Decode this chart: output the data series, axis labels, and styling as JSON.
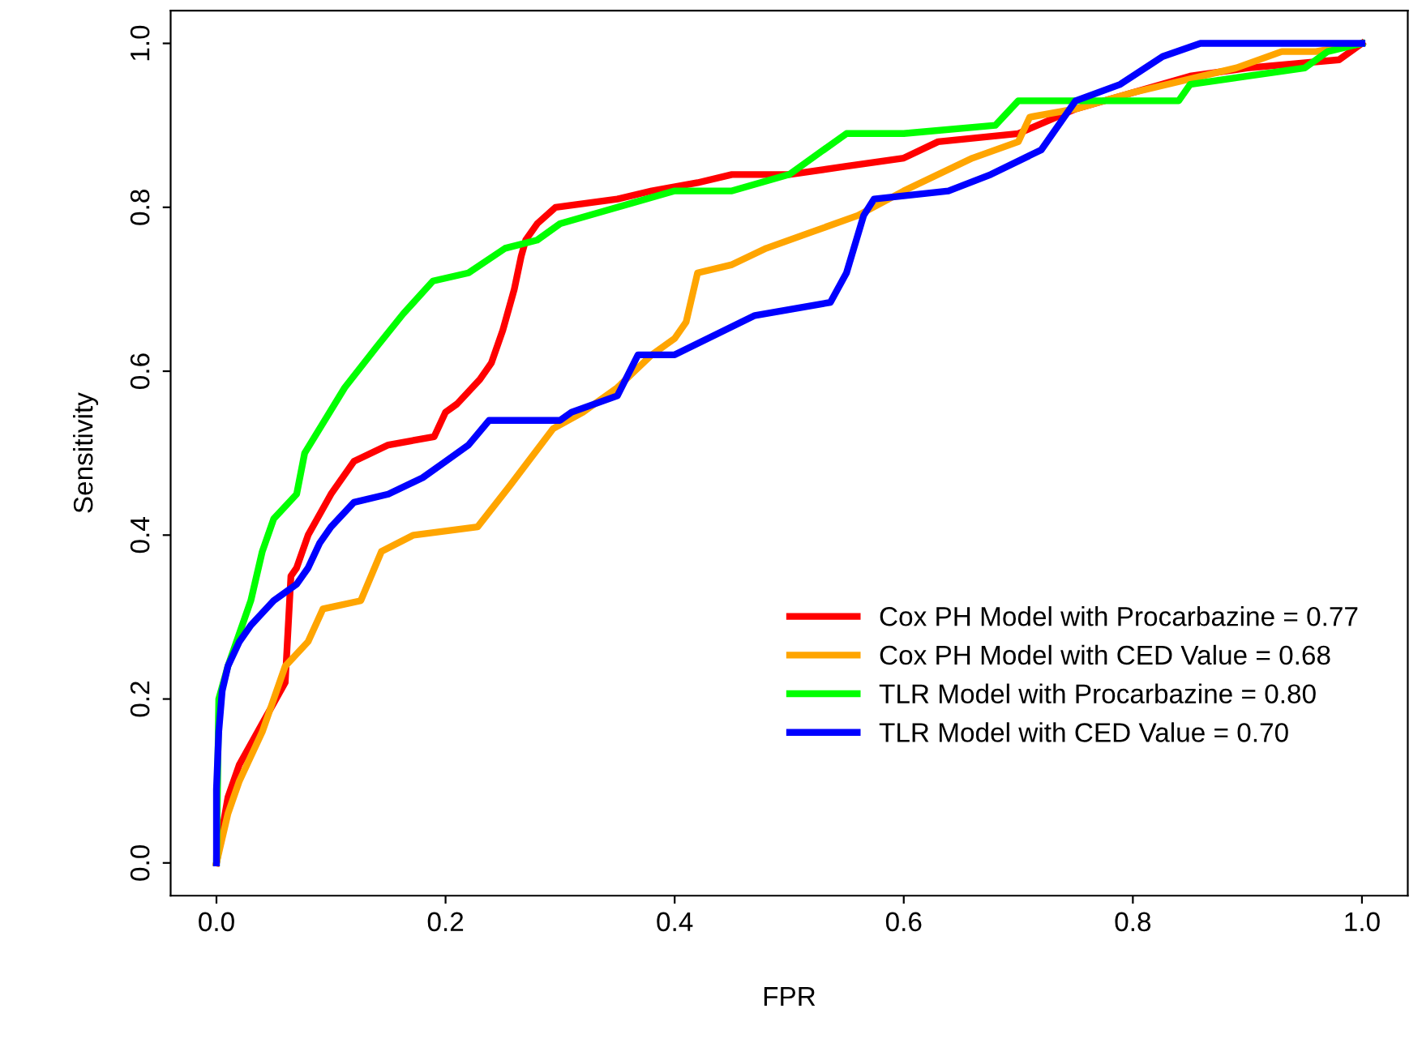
{
  "chart_data": {
    "type": "line",
    "xlabel": "FPR",
    "ylabel": "Sensitivity",
    "xlim": [
      -0.04,
      1.04
    ],
    "ylim": [
      -0.04,
      1.04
    ],
    "xticks": [
      {
        "value": 0,
        "label": "0.0"
      },
      0.2,
      0.4,
      0.6,
      0.8,
      {
        "value": 1,
        "label": "1.0"
      }
    ],
    "yticks": [
      {
        "value": 0,
        "label": "0.0"
      },
      0.2,
      0.4,
      0.6,
      0.8,
      {
        "value": 1,
        "label": "1.0"
      }
    ],
    "grid": false,
    "legend": "bottom right",
    "line_style": "solid",
    "marker": "none",
    "series": [
      {
        "name": "Cox PH Model with Procarbazine = 0.77",
        "color": "#ff0000",
        "x": [
          0,
          0.01,
          0.02,
          0.04,
          0.06,
          0.065,
          0.07,
          0.08,
          0.1,
          0.12,
          0.15,
          0.19,
          0.2,
          0.21,
          0.23,
          0.24,
          0.25,
          0.26,
          0.266,
          0.27,
          0.28,
          0.296,
          0.35,
          0.38,
          0.42,
          0.45,
          0.5,
          0.55,
          0.6,
          0.63,
          0.7,
          0.75,
          0.8,
          0.85,
          0.9,
          0.98,
          1
        ],
        "values": [
          0,
          0.08,
          0.12,
          0.17,
          0.22,
          0.35,
          0.36,
          0.4,
          0.45,
          0.49,
          0.51,
          0.52,
          0.55,
          0.56,
          0.59,
          0.61,
          0.65,
          0.7,
          0.74,
          0.76,
          0.78,
          0.8,
          0.81,
          0.82,
          0.83,
          0.84,
          0.84,
          0.85,
          0.86,
          0.88,
          0.89,
          0.92,
          0.94,
          0.96,
          0.97,
          0.98,
          1
        ]
      },
      {
        "name": "Cox PH Model with CED Value = 0.68",
        "color": "#ffa500",
        "x": [
          0,
          0.01,
          0.02,
          0.04,
          0.06,
          0.08,
          0.093,
          0.126,
          0.144,
          0.172,
          0.228,
          0.256,
          0.294,
          0.32,
          0.35,
          0.38,
          0.4,
          0.41,
          0.42,
          0.45,
          0.48,
          0.52,
          0.56,
          0.6,
          0.66,
          0.7,
          0.71,
          0.75,
          0.8,
          0.89,
          0.93,
          0.96,
          1
        ],
        "values": [
          0,
          0.06,
          0.1,
          0.16,
          0.24,
          0.27,
          0.31,
          0.32,
          0.38,
          0.4,
          0.41,
          0.46,
          0.53,
          0.55,
          0.58,
          0.62,
          0.64,
          0.66,
          0.72,
          0.73,
          0.75,
          0.77,
          0.79,
          0.82,
          0.86,
          0.88,
          0.91,
          0.92,
          0.94,
          0.97,
          0.99,
          0.99,
          1
        ]
      },
      {
        "name": "TLR Model with Procarbazine = 0.80",
        "color": "#00ff00",
        "x": [
          0,
          0.002,
          0.01,
          0.02,
          0.03,
          0.04,
          0.05,
          0.07,
          0.077,
          0.112,
          0.14,
          0.163,
          0.189,
          0.22,
          0.252,
          0.28,
          0.3,
          0.35,
          0.4,
          0.45,
          0.5,
          0.53,
          0.55,
          0.6,
          0.68,
          0.7,
          0.8,
          0.84,
          0.85,
          0.95,
          0.97,
          1
        ],
        "values": [
          0,
          0.2,
          0.24,
          0.28,
          0.32,
          0.38,
          0.42,
          0.45,
          0.5,
          0.58,
          0.63,
          0.67,
          0.71,
          0.72,
          0.75,
          0.76,
          0.78,
          0.8,
          0.82,
          0.82,
          0.84,
          0.87,
          0.89,
          0.89,
          0.9,
          0.93,
          0.93,
          0.93,
          0.95,
          0.97,
          0.99,
          1
        ]
      },
      {
        "name": "TLR Model with CED Value = 0.70",
        "color": "#0000ff",
        "x": [
          0,
          0,
          0.002,
          0.005,
          0.01,
          0.02,
          0.03,
          0.05,
          0.07,
          0.08,
          0.09,
          0.1,
          0.12,
          0.15,
          0.18,
          0.2,
          0.22,
          0.238,
          0.3,
          0.31,
          0.35,
          0.368,
          0.4,
          0.47,
          0.536,
          0.55,
          0.565,
          0.574,
          0.639,
          0.676,
          0.72,
          0.75,
          0.789,
          0.826,
          0.859,
          1
        ],
        "values": [
          0,
          0.09,
          0.16,
          0.21,
          0.24,
          0.27,
          0.29,
          0.32,
          0.34,
          0.36,
          0.39,
          0.41,
          0.44,
          0.45,
          0.47,
          0.49,
          0.51,
          0.54,
          0.54,
          0.55,
          0.57,
          0.62,
          0.62,
          0.668,
          0.684,
          0.72,
          0.79,
          0.81,
          0.82,
          0.84,
          0.87,
          0.93,
          0.95,
          0.984,
          1,
          1
        ]
      }
    ]
  }
}
